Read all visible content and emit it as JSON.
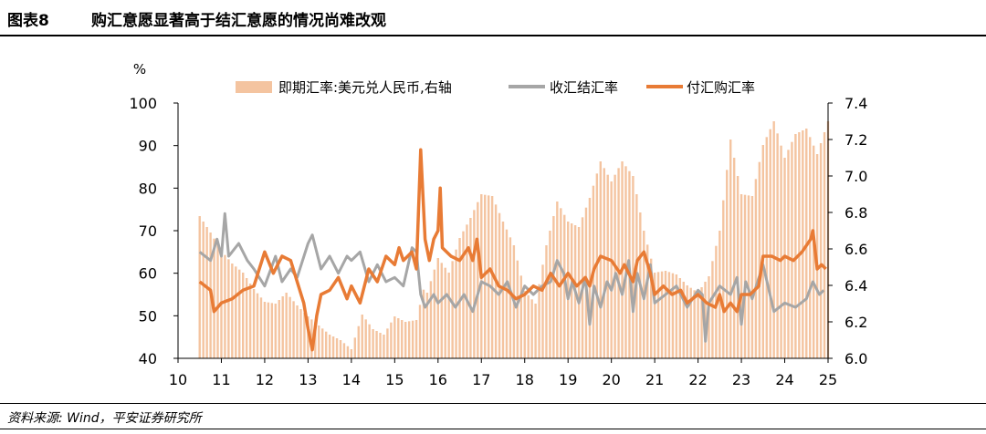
{
  "figure": {
    "label": "图表8",
    "title": "购汇意愿显著高于结汇意愿的情况尚难改观",
    "source": "资料来源: Wind，平安证券研究所"
  },
  "chart_data": {
    "type": "line",
    "left_unit": "%",
    "legend_position": "top",
    "left_axis": {
      "min": 40,
      "max": 100,
      "ticks": [
        40,
        50,
        60,
        70,
        80,
        90,
        100
      ]
    },
    "right_axis": {
      "min": 6.0,
      "max": 7.4,
      "ticks": [
        "6.0",
        "6.2",
        "6.4",
        "6.6",
        "6.8",
        "7.0",
        "7.2",
        "7.4"
      ]
    },
    "x_axis": {
      "min": 2010.0,
      "max": 2025.0,
      "labels": [
        "10",
        "11",
        "12",
        "13",
        "14",
        "15",
        "16",
        "17",
        "18",
        "19",
        "20",
        "21",
        "22",
        "23",
        "24",
        "25"
      ]
    },
    "series": [
      {
        "name": "即期汇率:美元兑人民币,右轴",
        "kind": "bar",
        "axis": "right",
        "color": "#f4c4a0",
        "points": [
          [
            2010.5,
            6.78
          ],
          [
            2010.75,
            6.69
          ],
          [
            2011.0,
            6.59
          ],
          [
            2011.25,
            6.52
          ],
          [
            2011.5,
            6.47
          ],
          [
            2011.75,
            6.38
          ],
          [
            2012.0,
            6.31
          ],
          [
            2012.25,
            6.3
          ],
          [
            2012.5,
            6.36
          ],
          [
            2012.75,
            6.29
          ],
          [
            2013.0,
            6.23
          ],
          [
            2013.25,
            6.18
          ],
          [
            2013.5,
            6.13
          ],
          [
            2013.75,
            6.1
          ],
          [
            2014.0,
            6.05
          ],
          [
            2014.25,
            6.24
          ],
          [
            2014.5,
            6.16
          ],
          [
            2014.75,
            6.13
          ],
          [
            2015.0,
            6.23
          ],
          [
            2015.25,
            6.2
          ],
          [
            2015.5,
            6.21
          ],
          [
            2015.67,
            6.38
          ],
          [
            2015.75,
            6.36
          ],
          [
            2016.0,
            6.55
          ],
          [
            2016.25,
            6.47
          ],
          [
            2016.5,
            6.66
          ],
          [
            2016.75,
            6.77
          ],
          [
            2017.0,
            6.9
          ],
          [
            2017.25,
            6.89
          ],
          [
            2017.5,
            6.75
          ],
          [
            2017.75,
            6.62
          ],
          [
            2018.0,
            6.37
          ],
          [
            2018.25,
            6.3
          ],
          [
            2018.5,
            6.62
          ],
          [
            2018.75,
            6.86
          ],
          [
            2019.0,
            6.75
          ],
          [
            2019.25,
            6.72
          ],
          [
            2019.5,
            6.88
          ],
          [
            2019.75,
            7.08
          ],
          [
            2020.0,
            6.97
          ],
          [
            2020.25,
            7.08
          ],
          [
            2020.5,
            7.0
          ],
          [
            2020.75,
            6.7
          ],
          [
            2021.0,
            6.47
          ],
          [
            2021.25,
            6.48
          ],
          [
            2021.5,
            6.46
          ],
          [
            2021.75,
            6.4
          ],
          [
            2022.0,
            6.36
          ],
          [
            2022.25,
            6.45
          ],
          [
            2022.5,
            6.7
          ],
          [
            2022.75,
            7.2
          ],
          [
            2023.0,
            6.9
          ],
          [
            2023.25,
            6.89
          ],
          [
            2023.5,
            7.17
          ],
          [
            2023.75,
            7.3
          ],
          [
            2024.0,
            7.1
          ],
          [
            2024.25,
            7.23
          ],
          [
            2024.5,
            7.26
          ],
          [
            2024.75,
            7.12
          ],
          [
            2025.0,
            7.3
          ]
        ]
      },
      {
        "name": "收汇结汇率",
        "kind": "line",
        "axis": "left",
        "color": "#a6a6a6",
        "points": [
          [
            2010.5,
            65
          ],
          [
            2010.75,
            63
          ],
          [
            2010.9,
            68
          ],
          [
            2011.0,
            64
          ],
          [
            2011.08,
            74
          ],
          [
            2011.17,
            64
          ],
          [
            2011.4,
            67
          ],
          [
            2011.6,
            63
          ],
          [
            2011.75,
            61
          ],
          [
            2012.0,
            57
          ],
          [
            2012.25,
            64
          ],
          [
            2012.4,
            58
          ],
          [
            2012.6,
            61
          ],
          [
            2012.75,
            59
          ],
          [
            2013.0,
            67
          ],
          [
            2013.1,
            69
          ],
          [
            2013.3,
            61
          ],
          [
            2013.5,
            64
          ],
          [
            2013.7,
            60
          ],
          [
            2013.9,
            64
          ],
          [
            2014.0,
            63
          ],
          [
            2014.2,
            65
          ],
          [
            2014.4,
            58
          ],
          [
            2014.6,
            62
          ],
          [
            2014.8,
            58
          ],
          [
            2015.0,
            59
          ],
          [
            2015.2,
            57
          ],
          [
            2015.4,
            66
          ],
          [
            2015.5,
            65
          ],
          [
            2015.6,
            55
          ],
          [
            2015.7,
            52
          ],
          [
            2015.9,
            55
          ],
          [
            2016.0,
            53
          ],
          [
            2016.2,
            55
          ],
          [
            2016.4,
            52
          ],
          [
            2016.6,
            55
          ],
          [
            2016.8,
            51
          ],
          [
            2017.0,
            58
          ],
          [
            2017.2,
            57
          ],
          [
            2017.4,
            55
          ],
          [
            2017.6,
            58
          ],
          [
            2017.8,
            52
          ],
          [
            2018.0,
            57
          ],
          [
            2018.2,
            55
          ],
          [
            2018.4,
            57
          ],
          [
            2018.6,
            58
          ],
          [
            2018.75,
            63
          ],
          [
            2018.9,
            60
          ],
          [
            2019.0,
            54
          ],
          [
            2019.1,
            58
          ],
          [
            2019.25,
            53
          ],
          [
            2019.4,
            59
          ],
          [
            2019.5,
            48
          ],
          [
            2019.6,
            57
          ],
          [
            2019.75,
            52
          ],
          [
            2019.9,
            58
          ],
          [
            2020.0,
            56
          ],
          [
            2020.1,
            60
          ],
          [
            2020.25,
            55
          ],
          [
            2020.4,
            63
          ],
          [
            2020.5,
            51
          ],
          [
            2020.6,
            60
          ],
          [
            2020.75,
            54
          ],
          [
            2020.9,
            62
          ],
          [
            2021.0,
            53
          ],
          [
            2021.25,
            55
          ],
          [
            2021.5,
            57
          ],
          [
            2021.75,
            52
          ],
          [
            2022.0,
            56
          ],
          [
            2022.1,
            55
          ],
          [
            2022.17,
            44
          ],
          [
            2022.25,
            53
          ],
          [
            2022.5,
            57
          ],
          [
            2022.75,
            55
          ],
          [
            2022.9,
            59
          ],
          [
            2023.0,
            48
          ],
          [
            2023.1,
            58
          ],
          [
            2023.25,
            54
          ],
          [
            2023.5,
            62
          ],
          [
            2023.75,
            51
          ],
          [
            2024.0,
            53
          ],
          [
            2024.25,
            52
          ],
          [
            2024.5,
            54
          ],
          [
            2024.65,
            58
          ],
          [
            2024.8,
            55
          ],
          [
            2024.9,
            56
          ]
        ]
      },
      {
        "name": "付汇购汇率",
        "kind": "line",
        "axis": "left",
        "color": "#e87b35",
        "points": [
          [
            2010.5,
            58
          ],
          [
            2010.75,
            56
          ],
          [
            2010.83,
            51
          ],
          [
            2011.0,
            53
          ],
          [
            2011.25,
            54
          ],
          [
            2011.5,
            56
          ],
          [
            2011.75,
            57
          ],
          [
            2012.0,
            65
          ],
          [
            2012.2,
            60
          ],
          [
            2012.4,
            64
          ],
          [
            2012.6,
            63
          ],
          [
            2012.75,
            58
          ],
          [
            2012.9,
            53
          ],
          [
            2013.0,
            47
          ],
          [
            2013.1,
            42
          ],
          [
            2013.2,
            50
          ],
          [
            2013.3,
            55
          ],
          [
            2013.5,
            56
          ],
          [
            2013.7,
            59
          ],
          [
            2013.9,
            54
          ],
          [
            2014.0,
            57
          ],
          [
            2014.2,
            53
          ],
          [
            2014.4,
            61
          ],
          [
            2014.6,
            58
          ],
          [
            2014.8,
            64
          ],
          [
            2015.0,
            62
          ],
          [
            2015.1,
            66
          ],
          [
            2015.2,
            63
          ],
          [
            2015.4,
            65
          ],
          [
            2015.5,
            61
          ],
          [
            2015.6,
            89
          ],
          [
            2015.7,
            68
          ],
          [
            2015.8,
            63
          ],
          [
            2015.9,
            68
          ],
          [
            2016.0,
            70
          ],
          [
            2016.05,
            80
          ],
          [
            2016.1,
            66
          ],
          [
            2016.3,
            64
          ],
          [
            2016.5,
            63
          ],
          [
            2016.7,
            66
          ],
          [
            2016.8,
            63
          ],
          [
            2016.9,
            68
          ],
          [
            2017.0,
            59
          ],
          [
            2017.2,
            61
          ],
          [
            2017.4,
            57
          ],
          [
            2017.6,
            56
          ],
          [
            2017.8,
            54
          ],
          [
            2018.0,
            55
          ],
          [
            2018.2,
            57
          ],
          [
            2018.4,
            56
          ],
          [
            2018.6,
            60
          ],
          [
            2018.8,
            57
          ],
          [
            2019.0,
            60
          ],
          [
            2019.2,
            57
          ],
          [
            2019.4,
            59
          ],
          [
            2019.5,
            57
          ],
          [
            2019.6,
            61
          ],
          [
            2019.75,
            64
          ],
          [
            2020.0,
            63
          ],
          [
            2020.2,
            60
          ],
          [
            2020.3,
            62
          ],
          [
            2020.5,
            58
          ],
          [
            2020.6,
            63
          ],
          [
            2020.75,
            65
          ],
          [
            2020.9,
            60
          ],
          [
            2021.0,
            55
          ],
          [
            2021.2,
            57
          ],
          [
            2021.4,
            55
          ],
          [
            2021.6,
            56
          ],
          [
            2021.75,
            53
          ],
          [
            2022.0,
            55
          ],
          [
            2022.2,
            53
          ],
          [
            2022.4,
            52
          ],
          [
            2022.5,
            55
          ],
          [
            2022.6,
            51
          ],
          [
            2022.75,
            53
          ],
          [
            2022.9,
            51
          ],
          [
            2023.0,
            55
          ],
          [
            2023.2,
            55
          ],
          [
            2023.4,
            57
          ],
          [
            2023.5,
            64
          ],
          [
            2023.7,
            64
          ],
          [
            2023.9,
            63
          ],
          [
            2024.0,
            64
          ],
          [
            2024.2,
            63
          ],
          [
            2024.4,
            65
          ],
          [
            2024.6,
            68
          ],
          [
            2024.65,
            70
          ],
          [
            2024.75,
            61
          ],
          [
            2024.85,
            62
          ],
          [
            2024.95,
            61
          ]
        ]
      }
    ]
  }
}
